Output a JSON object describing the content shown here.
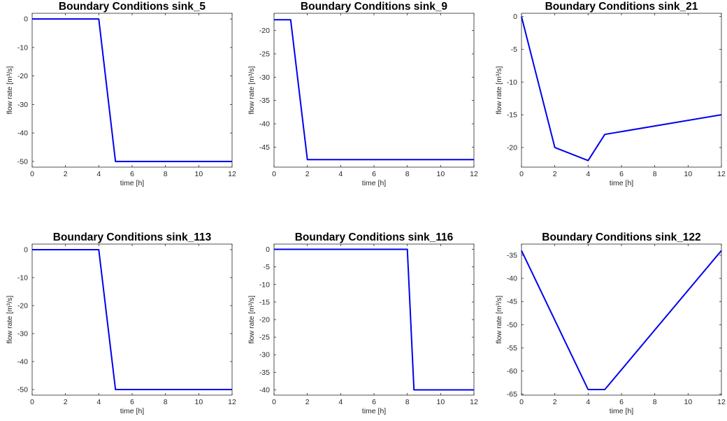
{
  "chart_data": [
    {
      "type": "line",
      "title": "Boundary Conditions sink_5",
      "xlabel": "time [h]",
      "ylabel": "flow rate [m³/s]",
      "xlim": [
        0,
        12
      ],
      "ylim": [
        -52,
        2
      ],
      "xticks": [
        "0",
        "2",
        "4",
        "6",
        "8",
        "10",
        "12"
      ],
      "yticks": [
        "0",
        "-10",
        "-20",
        "-30",
        "-40",
        "-50"
      ],
      "series": [
        {
          "color": "#0000ee",
          "x": [
            0,
            4,
            5,
            12
          ],
          "y": [
            0,
            0,
            -50,
            -50
          ]
        }
      ]
    },
    {
      "type": "line",
      "title": "Boundary Conditions sink_9",
      "xlabel": "time [h]",
      "ylabel": "flow rate [m³/s]",
      "xlim": [
        0,
        12
      ],
      "ylim": [
        -49.3,
        -16.3
      ],
      "xticks": [
        "0",
        "2",
        "4",
        "6",
        "8",
        "10",
        "12"
      ],
      "yticks": [
        "-20",
        "-25",
        "-30",
        "-35",
        "-40",
        "-45"
      ],
      "series": [
        {
          "color": "#0000ee",
          "x": [
            0,
            1,
            2,
            12
          ],
          "y": [
            -17.7,
            -17.7,
            -47.7,
            -47.7
          ]
        }
      ]
    },
    {
      "type": "line",
      "title": "Boundary Conditions sink_21",
      "xlabel": "time [h]",
      "ylabel": "flow rate [m³/s]",
      "xlim": [
        0,
        12
      ],
      "ylim": [
        -23,
        0.5
      ],
      "xticks": [
        "0",
        "2",
        "4",
        "6",
        "8",
        "10",
        "12"
      ],
      "yticks": [
        "0",
        "-5",
        "-10",
        "-15",
        "-20"
      ],
      "series": [
        {
          "color": "#0000ee",
          "x": [
            0,
            2,
            4,
            5,
            12
          ],
          "y": [
            0,
            -20,
            -22,
            -18,
            -15
          ]
        }
      ]
    },
    {
      "type": "line",
      "title": "Boundary Conditions sink_113",
      "xlabel": "time [h]",
      "ylabel": "flow rate [m³/s]",
      "xlim": [
        0,
        12
      ],
      "ylim": [
        -52,
        2
      ],
      "xticks": [
        "0",
        "2",
        "4",
        "6",
        "8",
        "10",
        "12"
      ],
      "yticks": [
        "0",
        "-10",
        "-20",
        "-30",
        "-40",
        "-50"
      ],
      "series": [
        {
          "color": "#0000ee",
          "x": [
            0,
            4,
            5,
            12
          ],
          "y": [
            0,
            0,
            -50,
            -50
          ]
        }
      ]
    },
    {
      "type": "line",
      "title": "Boundary Conditions sink_116",
      "xlabel": "time [h]",
      "ylabel": "flow rate [m³/s]",
      "xlim": [
        0,
        12
      ],
      "ylim": [
        -41.5,
        1.5
      ],
      "xticks": [
        "0",
        "2",
        "4",
        "6",
        "8",
        "10",
        "12"
      ],
      "yticks": [
        "0",
        "-5",
        "-10",
        "-15",
        "-20",
        "-25",
        "-30",
        "-35",
        "-40"
      ],
      "series": [
        {
          "color": "#0000ee",
          "x": [
            0,
            8,
            8.4,
            12
          ],
          "y": [
            0,
            0,
            -40,
            -40
          ]
        }
      ]
    },
    {
      "type": "line",
      "title": "Boundary Conditions sink_122",
      "xlabel": "time [h]",
      "ylabel": "flow rate [m³/s]",
      "xlim": [
        0,
        12
      ],
      "ylim": [
        -65.2,
        -32.6
      ],
      "xticks": [
        "0",
        "2",
        "4",
        "6",
        "8",
        "10",
        "12"
      ],
      "yticks": [
        "-35",
        "-40",
        "-45",
        "-50",
        "-55",
        "-60",
        "-65"
      ],
      "series": [
        {
          "color": "#0000ee",
          "x": [
            0,
            4,
            5,
            12
          ],
          "y": [
            -34,
            -64,
            -64,
            -34
          ]
        }
      ]
    }
  ]
}
